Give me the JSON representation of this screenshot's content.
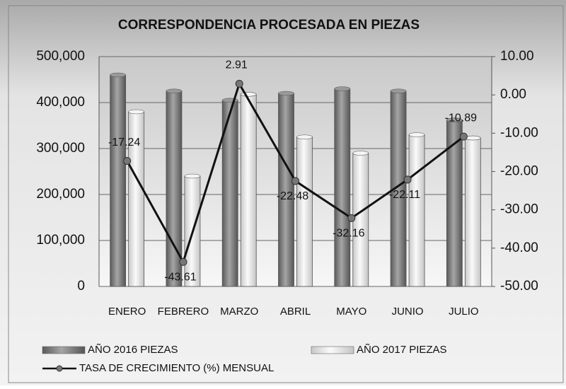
{
  "chart_data": {
    "type": "bar_line",
    "title": "CORRESPONDENCIA PROCESADA EN PIEZAS",
    "categories": [
      "ENERO",
      "FEBRERO",
      "MARZO",
      "ABRIL",
      "MAYO",
      "JUNIO",
      "JULIO"
    ],
    "series": [
      {
        "name": "AÑO 2016 PIEZAS",
        "type": "bar",
        "color": "#7a7a7a",
        "values": [
          460000,
          425000,
          405000,
          420000,
          430000,
          425000,
          362000
        ]
      },
      {
        "name": "AÑO 2017 PIEZAS",
        "type": "bar",
        "color": "#e2e2e2",
        "values": [
          380000,
          240000,
          418000,
          325000,
          290000,
          330000,
          323000
        ]
      },
      {
        "name": "TASA DE CRECIMIENTO (%) MENSUAL",
        "type": "line",
        "axis": "y2",
        "color": "#111111",
        "values": [
          -17.24,
          -43.61,
          2.91,
          -22.48,
          -32.16,
          -22.11,
          -10.89
        ]
      }
    ],
    "ylim": [
      0,
      500000
    ],
    "yticks": [
      0,
      {
        "value": 100000,
        "label": "100,000"
      },
      {
        "value": 200000,
        "label": "200,000"
      },
      {
        "value": 300000,
        "label": "300,000"
      },
      {
        "value": 400000,
        "label": "400,000"
      },
      {
        "value": 500000,
        "label": "500,000"
      }
    ],
    "y2lim": [
      -50,
      10
    ],
    "y2ticks": [
      {
        "value": -50,
        "label": "-50.00"
      },
      {
        "value": -40,
        "label": "-40.00"
      },
      {
        "value": -30,
        "label": "-30.00"
      },
      {
        "value": -20,
        "label": "-20.00"
      },
      {
        "value": -10,
        "label": "-10.00"
      },
      {
        "value": 0,
        "label": "0.00"
      },
      {
        "value": 10,
        "label": "10.00"
      }
    ],
    "grid": true
  }
}
